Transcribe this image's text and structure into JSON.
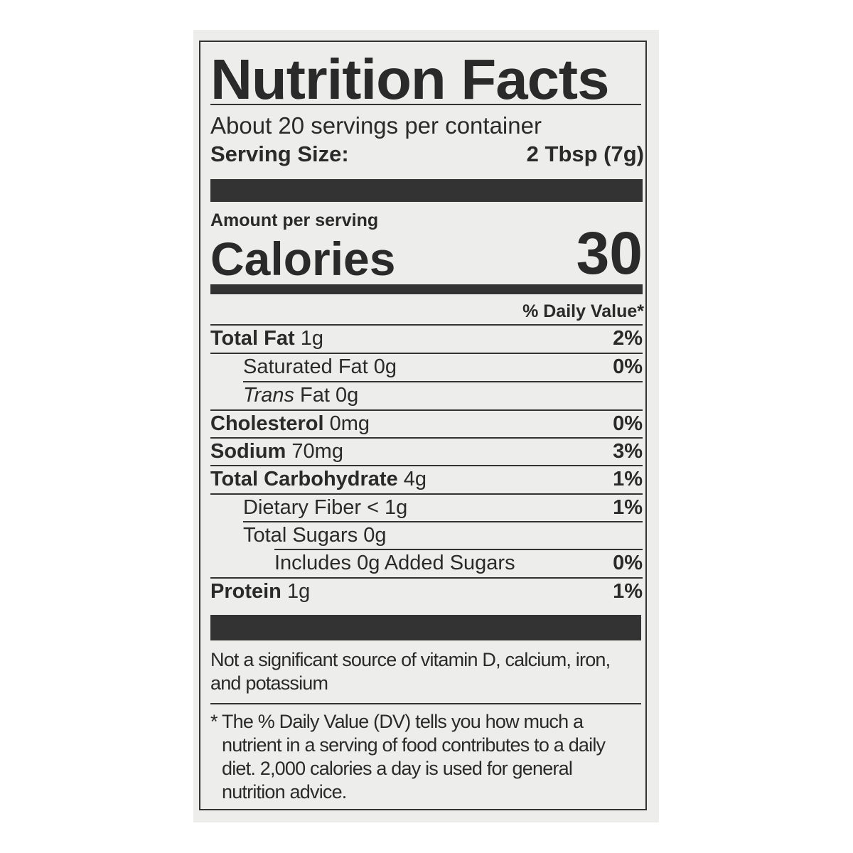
{
  "label": {
    "title": "Nutrition Facts",
    "servings_per_container": "About 20 servings per container",
    "serving_size_label": "Serving Size:",
    "serving_size_value": "2 Tbsp (7g)",
    "amount_per_serving": "Amount per serving",
    "calories_label": "Calories",
    "calories_value": "30",
    "daily_value_header": "% Daily Value*",
    "nutrients": [
      {
        "name": "Total Fat",
        "amount": "1g",
        "dv": "2%"
      },
      {
        "name": "Saturated Fat",
        "amount": "0g",
        "dv": "0%"
      },
      {
        "name": "Trans",
        "name_suffix": "Fat",
        "amount": "0g",
        "dv": ""
      },
      {
        "name": "Cholesterol",
        "amount": "0mg",
        "dv": "0%"
      },
      {
        "name": "Sodium",
        "amount": "70mg",
        "dv": "3%"
      },
      {
        "name": "Total Carbohydrate",
        "amount": "4g",
        "dv": "1%"
      },
      {
        "name": "Dietary Fiber",
        "amount": "< 1g",
        "dv": "1%"
      },
      {
        "name": "Total Sugars",
        "amount": "0g",
        "dv": ""
      },
      {
        "name": "Includes 0g Added Sugars",
        "amount": "",
        "dv": "0%"
      },
      {
        "name": "Protein",
        "amount": "1g",
        "dv": "1%"
      }
    ],
    "vitamins_note_1": "Not a significant source of vitamin D, calcium, iron,",
    "vitamins_note_2": "and potassium",
    "footnote": [
      "* The % Daily Value (DV) tells you how much a",
      "nutrient in a serving of food contributes to a daily",
      "diet. 2,000 calories a day is used for general",
      "nutrition advice."
    ]
  }
}
